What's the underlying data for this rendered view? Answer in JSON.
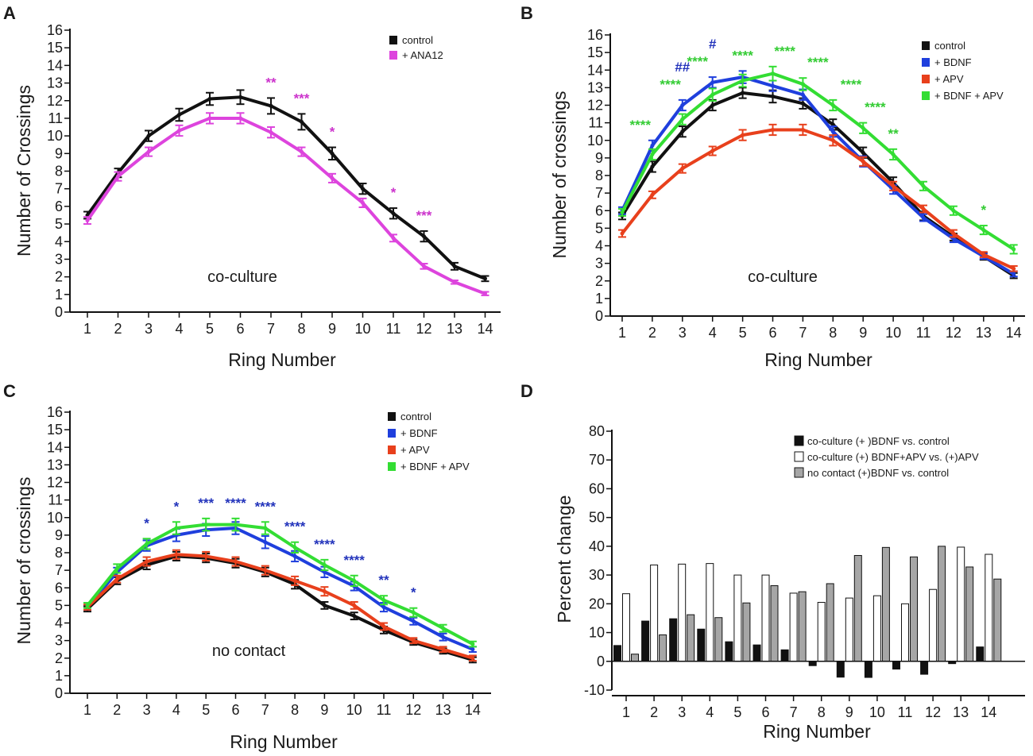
{
  "panels": [
    {
      "letter": "A",
      "chart_data": {
        "type": "line",
        "title": "",
        "annotation": "co-culture",
        "xlabel": "Ring Number",
        "ylabel": "Number of Crossings",
        "x": [
          1,
          2,
          3,
          4,
          5,
          6,
          7,
          8,
          9,
          10,
          11,
          12,
          13,
          14
        ],
        "ylim": [
          0,
          16
        ],
        "yticks": [
          0,
          1,
          2,
          3,
          4,
          5,
          6,
          7,
          8,
          9,
          10,
          11,
          12,
          13,
          14,
          15,
          16
        ],
        "legend_position": "top-right",
        "series": [
          {
            "name": "control",
            "color": "#111111",
            "values": [
              5.5,
              7.9,
              10.0,
              11.2,
              12.1,
              12.2,
              11.7,
              10.8,
              9.0,
              7.0,
              5.6,
              4.3,
              2.6,
              1.9
            ],
            "err": [
              0.2,
              0.25,
              0.3,
              0.35,
              0.35,
              0.4,
              0.45,
              0.45,
              0.35,
              0.3,
              0.3,
              0.3,
              0.2,
              0.15
            ]
          },
          {
            "name": "+ ANA12",
            "color": "#dd44dd",
            "values": [
              5.2,
              7.7,
              9.1,
              10.3,
              11.0,
              11.0,
              10.2,
              9.1,
              7.6,
              6.2,
              4.2,
              2.6,
              1.7,
              1.05
            ],
            "err": [
              0.2,
              0.25,
              0.25,
              0.3,
              0.3,
              0.3,
              0.3,
              0.25,
              0.25,
              0.25,
              0.2,
              0.15,
              0.1,
              0.1
            ]
          }
        ],
        "significance": [
          {
            "x": 7,
            "label": "**",
            "color": "#cc33cc"
          },
          {
            "x": 8,
            "label": "***",
            "color": "#cc33cc"
          },
          {
            "x": 9,
            "label": "*",
            "color": "#cc33cc"
          },
          {
            "x": 11,
            "label": "*",
            "color": "#cc33cc"
          },
          {
            "x": 12,
            "label": "***",
            "color": "#cc33cc"
          }
        ]
      }
    },
    {
      "letter": "B",
      "chart_data": {
        "type": "line",
        "title": "",
        "annotation": "co-culture",
        "xlabel": "Ring Number",
        "ylabel": "Number of crossings",
        "x": [
          1,
          2,
          3,
          4,
          5,
          6,
          7,
          8,
          9,
          10,
          11,
          12,
          13,
          14
        ],
        "ylim": [
          0,
          16
        ],
        "yticks": [
          0,
          1,
          2,
          3,
          4,
          5,
          6,
          7,
          8,
          9,
          10,
          11,
          12,
          13,
          14,
          15,
          16
        ],
        "legend_position": "top-right",
        "series": [
          {
            "name": "control",
            "color": "#111111",
            "values": [
              5.7,
              8.5,
              10.5,
              12.0,
              12.7,
              12.5,
              12.1,
              10.9,
              9.3,
              7.6,
              5.7,
              4.5,
              3.4,
              2.3
            ],
            "err": [
              0.2,
              0.3,
              0.3,
              0.3,
              0.3,
              0.35,
              0.3,
              0.3,
              0.3,
              0.3,
              0.25,
              0.2,
              0.2,
              0.15
            ]
          },
          {
            "name": "+ BDNF",
            "color": "#1f3fdd",
            "values": [
              6.0,
              9.7,
              12.0,
              13.3,
              13.6,
              13.1,
              12.6,
              10.5,
              8.8,
              7.2,
              5.6,
              4.4,
              3.4,
              2.4
            ],
            "err": [
              0.2,
              0.3,
              0.3,
              0.3,
              0.35,
              0.3,
              0.3,
              0.3,
              0.3,
              0.25,
              0.2,
              0.2,
              0.15,
              0.15
            ]
          },
          {
            "name": "+ APV",
            "color": "#e8401c",
            "values": [
              4.7,
              6.9,
              8.4,
              9.4,
              10.3,
              10.6,
              10.6,
              10.0,
              8.8,
              7.4,
              6.1,
              4.7,
              3.5,
              2.7
            ],
            "err": [
              0.2,
              0.2,
              0.25,
              0.25,
              0.3,
              0.3,
              0.3,
              0.3,
              0.25,
              0.25,
              0.2,
              0.2,
              0.15,
              0.15
            ]
          },
          {
            "name": "+ BDNF + APV",
            "color": "#33dd33",
            "values": [
              5.9,
              9.2,
              11.2,
              12.6,
              13.4,
              13.8,
              13.2,
              12.0,
              10.7,
              9.2,
              7.4,
              6.0,
              4.9,
              3.8
            ],
            "err": [
              0.2,
              0.3,
              0.3,
              0.35,
              0.35,
              0.4,
              0.35,
              0.3,
              0.3,
              0.3,
              0.25,
              0.25,
              0.25,
              0.25
            ]
          }
        ],
        "significance": [
          {
            "x": 1.6,
            "label": "****",
            "color": "#33cc33"
          },
          {
            "x": 2.6,
            "label": "****",
            "color": "#33cc33"
          },
          {
            "x": 3,
            "label": "##",
            "color": "#2233bb"
          },
          {
            "x": 3.5,
            "label": "****",
            "color": "#33cc33"
          },
          {
            "x": 4,
            "label": "#",
            "color": "#2233bb"
          },
          {
            "x": 5,
            "label": "****",
            "color": "#33cc33"
          },
          {
            "x": 6.4,
            "label": "****",
            "color": "#33cc33"
          },
          {
            "x": 7.5,
            "label": "****",
            "color": "#33cc33"
          },
          {
            "x": 8.6,
            "label": "****",
            "color": "#33cc33"
          },
          {
            "x": 9.4,
            "label": "****",
            "color": "#33cc33"
          },
          {
            "x": 10,
            "label": "**",
            "color": "#33cc33"
          },
          {
            "x": 13,
            "label": "*",
            "color": "#33cc33"
          }
        ]
      }
    },
    {
      "letter": "C",
      "chart_data": {
        "type": "line",
        "title": "",
        "annotation": "no contact",
        "xlabel": "Ring Number",
        "ylabel": "Number of crossings",
        "x": [
          1,
          2,
          3,
          4,
          5,
          6,
          7,
          8,
          9,
          10,
          11,
          12,
          13,
          14
        ],
        "ylim": [
          0,
          16
        ],
        "yticks": [
          0,
          1,
          2,
          3,
          4,
          5,
          6,
          7,
          8,
          9,
          10,
          11,
          12,
          13,
          14,
          15,
          16
        ],
        "legend_position": "top-right",
        "series": [
          {
            "name": "control",
            "color": "#111111",
            "values": [
              4.8,
              6.4,
              7.3,
              7.8,
              7.7,
              7.4,
              6.9,
              6.2,
              5.0,
              4.4,
              3.6,
              2.9,
              2.4,
              1.9
            ],
            "err": [
              0.15,
              0.2,
              0.25,
              0.25,
              0.25,
              0.25,
              0.25,
              0.25,
              0.2,
              0.2,
              0.2,
              0.15,
              0.15,
              0.15
            ]
          },
          {
            "name": "+ BDNF",
            "color": "#1f3fdd",
            "values": [
              4.9,
              6.9,
              8.4,
              9.0,
              9.3,
              9.4,
              8.6,
              7.8,
              6.9,
              6.1,
              4.9,
              4.1,
              3.2,
              2.5
            ],
            "err": [
              0.15,
              0.25,
              0.3,
              0.35,
              0.35,
              0.35,
              0.35,
              0.3,
              0.3,
              0.25,
              0.25,
              0.2,
              0.2,
              0.15
            ]
          },
          {
            "name": "+ APV",
            "color": "#e8401c",
            "values": [
              4.9,
              6.5,
              7.5,
              7.9,
              7.8,
              7.5,
              7.0,
              6.4,
              5.8,
              5.0,
              3.8,
              3.0,
              2.5,
              2.0
            ],
            "err": [
              0.15,
              0.2,
              0.25,
              0.25,
              0.25,
              0.25,
              0.25,
              0.25,
              0.25,
              0.2,
              0.2,
              0.15,
              0.15,
              0.15
            ]
          },
          {
            "name": "+ BDNF + APV",
            "color": "#33dd33",
            "values": [
              5.0,
              7.1,
              8.5,
              9.4,
              9.6,
              9.6,
              9.4,
              8.3,
              7.3,
              6.4,
              5.3,
              4.6,
              3.7,
              2.8
            ],
            "err": [
              0.15,
              0.25,
              0.3,
              0.35,
              0.35,
              0.35,
              0.35,
              0.3,
              0.3,
              0.3,
              0.25,
              0.25,
              0.2,
              0.15
            ]
          }
        ],
        "significance": [
          {
            "x": 3,
            "label": "*",
            "color": "#2233bb"
          },
          {
            "x": 4,
            "label": "*",
            "color": "#2233bb"
          },
          {
            "x": 5,
            "label": "***",
            "color": "#2233bb"
          },
          {
            "x": 6,
            "label": "****",
            "color": "#2233bb"
          },
          {
            "x": 7,
            "label": "****",
            "color": "#2233bb"
          },
          {
            "x": 8,
            "label": "****",
            "color": "#2233bb"
          },
          {
            "x": 9,
            "label": "****",
            "color": "#2233bb"
          },
          {
            "x": 10,
            "label": "****",
            "color": "#2233bb"
          },
          {
            "x": 11,
            "label": "**",
            "color": "#2233bb"
          },
          {
            "x": 12,
            "label": "*",
            "color": "#2233bb"
          }
        ]
      }
    },
    {
      "letter": "D",
      "chart_data": {
        "type": "bar",
        "title": "",
        "xlabel": "Ring Number",
        "ylabel": "Percent change",
        "categories": [
          "1",
          "2",
          "3",
          "4",
          "5",
          "6",
          "7",
          "8",
          "9",
          "10",
          "11",
          "12",
          "13",
          "14"
        ],
        "ylim": [
          -10,
          80
        ],
        "yticks": [
          -10,
          0,
          10,
          20,
          30,
          40,
          50,
          60,
          70,
          80
        ],
        "legend_position": "top-right",
        "series": [
          {
            "name": "co-culture (+ )BDNF vs. control",
            "color": "#111111",
            "values": [
              5.5,
              14,
              14.8,
              11.2,
              6.8,
              5.7,
              4,
              -1.5,
              -5.5,
              -5.6,
              -2.7,
              -4.5,
              -0.8,
              5
            ]
          },
          {
            "name": "co-culture (+) BDNF+APV vs. (+)APV",
            "color": "#ffffff",
            "values": [
              23.5,
              33.5,
              33.8,
              34,
              30,
              30,
              23.7,
              20.5,
              22,
              22.8,
              20,
              25,
              39.7,
              37.2
            ]
          },
          {
            "name": "no contact (+)BDNF vs. control",
            "color": "#a6a6a6",
            "values": [
              2.5,
              9.2,
              16.2,
              15.2,
              20.3,
              26.3,
              24.2,
              27,
              36.8,
              39.6,
              36.3,
              40,
              32.8,
              28.6
            ]
          }
        ]
      }
    }
  ]
}
